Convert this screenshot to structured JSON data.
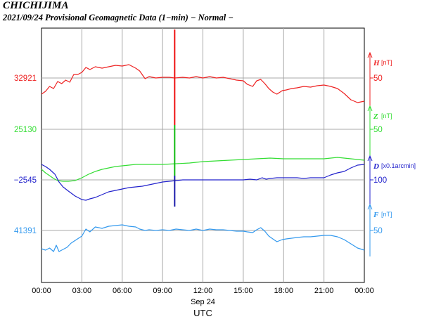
{
  "header": {
    "station": "CHICHIJIMA",
    "subtitle": "2021/09/24  Provisional Geomagnetic Data (1−min)  − Normal −"
  },
  "chart_data": {
    "type": "line",
    "title": "CHICHIJIMA",
    "subtitle": "2021/09/24  Provisional Geomagnetic Data (1−min)  − Normal −",
    "x_tick_labels": [
      "00:00",
      "03:00",
      "06:00",
      "09:00",
      "12:00",
      "15:00",
      "18:00",
      "21:00",
      "00:00"
    ],
    "x_date_label": "Sep 24",
    "xlabel": "UTC",
    "xlim_hours": [
      0,
      24
    ],
    "grid": true,
    "spike": {
      "time_hour": 9.9,
      "color_top": "#ee1111",
      "color_mid": "#11bb11",
      "color_bottom": "#1a1aaa"
    },
    "series": [
      {
        "name": "H",
        "unit": "[nT]",
        "color": "#ee2222",
        "left_label": "32921",
        "right_tick": "50",
        "x_hours": [
          0,
          0.3,
          0.6,
          0.9,
          1.2,
          1.5,
          1.8,
          2.1,
          2.4,
          2.7,
          3.0,
          3.3,
          3.6,
          4.0,
          4.5,
          5.0,
          5.5,
          6.0,
          6.5,
          7.0,
          7.3,
          7.7,
          8.0,
          8.5,
          9.0,
          9.5,
          9.9,
          10.5,
          11.0,
          11.5,
          12.0,
          12.5,
          13.0,
          13.5,
          14.0,
          14.5,
          15.0,
          15.3,
          15.7,
          16.0,
          16.3,
          16.6,
          16.9,
          17.2,
          17.5,
          17.9,
          18.2,
          18.6,
          19.0,
          19.5,
          20.0,
          20.5,
          21.0,
          21.5,
          22.0,
          22.5,
          23.0,
          23.5,
          24.0
        ],
        "values": [
          -23,
          -19,
          -12,
          -15,
          -5,
          -8,
          -3,
          -6,
          5,
          5,
          8,
          15,
          12,
          16,
          14,
          16,
          18,
          17,
          19,
          14,
          10,
          -1,
          2,
          0,
          1,
          1,
          0,
          1,
          0,
          2,
          0,
          2,
          0,
          1,
          -1,
          -3,
          -4,
          -9,
          -12,
          -4,
          -2,
          -8,
          -15,
          -20,
          -23,
          -18,
          -17,
          -15,
          -14,
          -12,
          -13,
          -11,
          -10,
          -12,
          -15,
          -22,
          -31,
          -35,
          -33
        ]
      },
      {
        "name": "Z",
        "unit": "[nT]",
        "color": "#33dd33",
        "left_label": "25130",
        "right_tick": "50",
        "x_hours": [
          0,
          0.3,
          0.6,
          0.9,
          1.2,
          1.6,
          2.0,
          2.5,
          3.0,
          3.5,
          4.0,
          4.5,
          5.0,
          5.5,
          6.0,
          6.5,
          7.0,
          7.5,
          8.0,
          9.0,
          10.0,
          11.0,
          12.0,
          13.0,
          14.0,
          15.0,
          16.0,
          17.0,
          18.0,
          19.0,
          20.0,
          21.0,
          21.5,
          22.0,
          22.5,
          23.0,
          23.5,
          24.0
        ],
        "values": [
          -7,
          -12,
          -16,
          -20,
          -23,
          -24,
          -24,
          -23,
          -19,
          -14,
          -10,
          -7,
          -5,
          -3,
          -2,
          -1,
          0,
          0,
          0,
          0,
          1,
          2,
          4,
          5,
          6,
          7,
          8,
          9,
          8,
          8,
          8,
          8,
          9,
          10,
          9,
          8,
          7,
          6
        ]
      },
      {
        "name": "D",
        "unit": "[x0.1arcmin]",
        "color": "#2222cc",
        "left_label": "−2545",
        "right_tick": "100",
        "x_hours": [
          0,
          0.3,
          0.6,
          1.0,
          1.3,
          1.6,
          2.0,
          2.5,
          3.0,
          3.3,
          3.6,
          4.0,
          4.5,
          5.0,
          5.5,
          6.0,
          6.5,
          7.0,
          7.5,
          8.0,
          8.5,
          9.0,
          9.5,
          10.0,
          10.5,
          11.0,
          12.0,
          13.0,
          14.0,
          15.0,
          15.5,
          16.0,
          16.4,
          16.7,
          17.0,
          17.5,
          18.0,
          19.0,
          19.5,
          20.0,
          20.5,
          21.0,
          21.5,
          22.0,
          22.5,
          23.0,
          23.5,
          24.0
        ],
        "values": [
          82,
          79,
          75,
          68,
          57,
          50,
          44,
          37,
          32,
          31,
          33,
          35,
          39,
          43,
          45,
          47,
          49,
          50,
          51,
          53,
          55,
          57,
          58,
          59,
          60,
          60,
          60,
          60,
          60,
          60,
          61,
          60,
          63,
          61,
          62,
          63,
          63,
          63,
          62,
          63,
          63,
          63,
          67,
          70,
          72,
          77,
          81,
          82
        ]
      },
      {
        "name": "F",
        "unit": "[nT]",
        "color": "#3399ee",
        "left_label": "41391",
        "right_tick": "50",
        "x_hours": [
          0,
          0.3,
          0.6,
          0.9,
          1.1,
          1.3,
          1.6,
          1.9,
          2.2,
          2.6,
          3.0,
          3.3,
          3.6,
          4.0,
          4.5,
          5.0,
          5.5,
          6.0,
          6.5,
          7.0,
          7.3,
          7.7,
          8.0,
          8.5,
          9.0,
          9.5,
          10.0,
          10.5,
          11.0,
          11.5,
          12.0,
          12.5,
          13.0,
          13.5,
          14.0,
          14.5,
          15.0,
          15.3,
          15.7,
          16.0,
          16.3,
          16.6,
          16.9,
          17.2,
          17.5,
          17.9,
          18.2,
          18.6,
          19.0,
          19.5,
          20.0,
          20.5,
          21.0,
          21.5,
          22.0,
          22.5,
          23.0,
          23.5,
          24.0
        ],
        "values": [
          24,
          22,
          25,
          20,
          29,
          20,
          23,
          26,
          32,
          37,
          42,
          52,
          48,
          55,
          53,
          56,
          57,
          58,
          56,
          55,
          52,
          50,
          51,
          50,
          51,
          50,
          52,
          51,
          50,
          52,
          50,
          52,
          51,
          51,
          50,
          49,
          49,
          48,
          47,
          51,
          54,
          49,
          42,
          38,
          34,
          37,
          38,
          39,
          40,
          41,
          41,
          42,
          43,
          43,
          41,
          37,
          31,
          25,
          22
        ]
      }
    ]
  }
}
